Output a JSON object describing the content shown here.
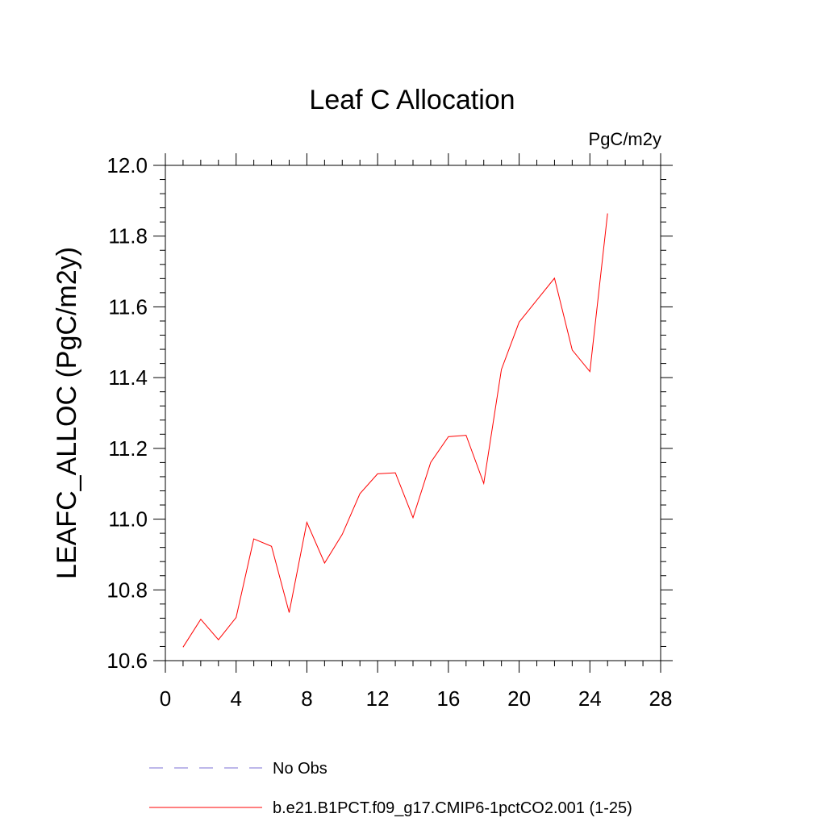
{
  "chart_data": {
    "type": "line",
    "title": "Leaf C Allocation",
    "units": "PgC/m2y",
    "xlabel": "",
    "ylabel": "LEAFC_ALLOC  (PgC/m2y)",
    "xlim": [
      0,
      28
    ],
    "ylim": [
      10.6,
      12.0
    ],
    "xticks": [
      0,
      4,
      8,
      12,
      16,
      20,
      24,
      28
    ],
    "xtick_labels": [
      "0",
      "4",
      "8",
      "12",
      "16",
      "20",
      "24",
      "28"
    ],
    "yticks": [
      10.6,
      10.8,
      11.0,
      11.2,
      11.4,
      11.6,
      11.8,
      12.0
    ],
    "ytick_labels": [
      "10.6",
      "10.8",
      "11.0",
      "11.2",
      "11.4",
      "11.6",
      "11.8",
      "12.0"
    ],
    "grid": false,
    "legend_position": "bottom",
    "series": [
      {
        "name": "b.e21.B1PCT.f09_g17.CMIP6-1pctCO2.001 (1-25)",
        "color": "#ff0000",
        "style": "solid",
        "x": [
          1,
          2,
          3,
          4,
          5,
          6,
          7,
          8,
          9,
          10,
          11,
          12,
          13,
          14,
          15,
          16,
          17,
          18,
          19,
          20,
          21,
          22,
          23,
          24,
          25
        ],
        "values": [
          10.638,
          10.717,
          10.659,
          10.722,
          10.944,
          10.923,
          10.736,
          10.991,
          10.876,
          10.957,
          11.072,
          11.128,
          11.131,
          11.004,
          11.16,
          11.233,
          11.237,
          11.101,
          11.423,
          11.557,
          11.619,
          11.681,
          11.478,
          11.417,
          11.864
        ]
      }
    ],
    "legend": [
      {
        "label": "No Obs",
        "color": "#7b6fd6",
        "style": "dashed"
      },
      {
        "label": "b.e21.B1PCT.f09_g17.CMIP6-1pctCO2.001 (1-25)",
        "color": "#ff0000",
        "style": "solid"
      }
    ]
  }
}
